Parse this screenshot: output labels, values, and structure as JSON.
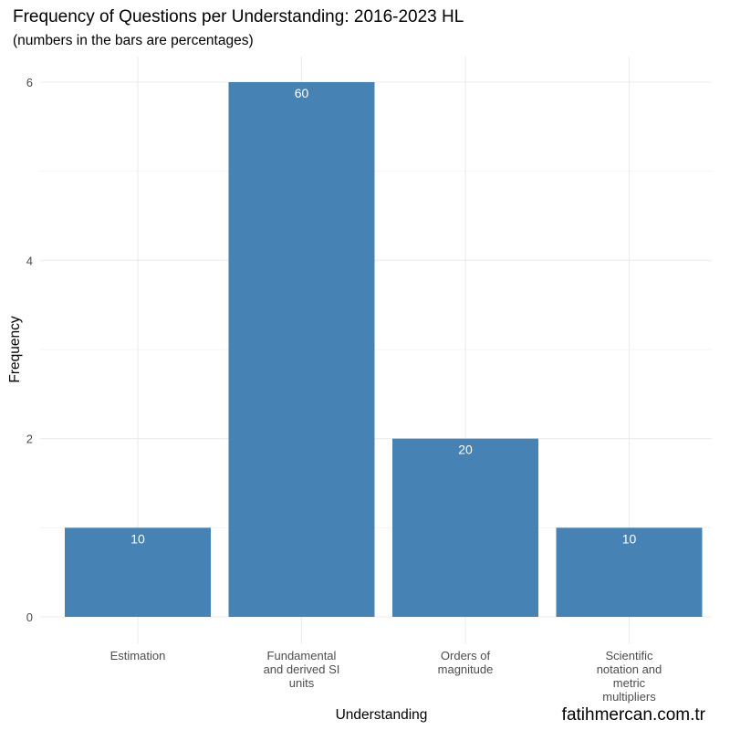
{
  "chart_data": {
    "type": "bar",
    "title": "Frequency of Questions per Understanding: 2016-2023 HL",
    "subtitle": "(numbers in the bars are percentages)",
    "xlabel": "Understanding",
    "ylabel": "Frequency",
    "categories": [
      [
        "Estimation"
      ],
      [
        "Fundamental",
        "and derived SI",
        "units"
      ],
      [
        "Orders of",
        "magnitude"
      ],
      [
        "Scientific",
        "notation and",
        "metric",
        "multipliers"
      ]
    ],
    "values": [
      1,
      6,
      2,
      1
    ],
    "bar_labels": [
      "10",
      "60",
      "20",
      "10"
    ],
    "ylim": [
      0,
      6.2
    ],
    "yticks": [
      0,
      2,
      4,
      6
    ],
    "bar_color": "#4682B4",
    "grid": true
  },
  "watermark": "fatihmercan.com.tr"
}
